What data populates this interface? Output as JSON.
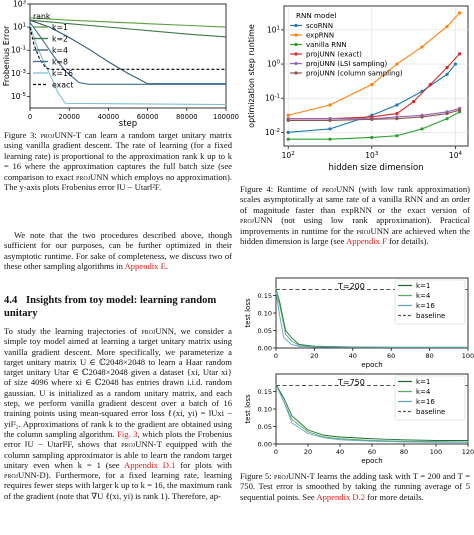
{
  "fig3": {
    "chart_data": {
      "type": "line",
      "ylabel": "Frobenius Error",
      "xlabel": "step",
      "x_ticks": [
        "0",
        "20000",
        "40000",
        "60000",
        "80000",
        "100000"
      ],
      "y_ticks": [
        "10^3",
        "10^1",
        "10^-1",
        "10^-3",
        "10^-5"
      ],
      "yscale": "log",
      "xlim": [
        0,
        100000
      ],
      "ylim_log10": [
        -6,
        3
      ],
      "legend_title": "rank",
      "legend_position": "left",
      "series": [
        {
          "name": "k=1",
          "color": "#5a9e3f",
          "x": [
            0,
            20000,
            40000,
            60000,
            80000,
            100000
          ],
          "y_log10": [
            1.8,
            1.6,
            1.45,
            1.3,
            1.15,
            1.0
          ]
        },
        {
          "name": "k=2",
          "color": "#3d7a42",
          "x": [
            0,
            20000,
            40000,
            60000,
            80000,
            100000
          ],
          "y_log10": [
            1.6,
            1.3,
            1.0,
            0.7,
            0.4,
            0.15
          ]
        },
        {
          "name": "k=4",
          "color": "#2e5a73",
          "x": [
            0,
            10000,
            20000,
            30000,
            40000,
            50000,
            60000,
            100000
          ],
          "y_log10": [
            1.6,
            1.0,
            0.1,
            -0.9,
            -2.0,
            -3.0,
            -3.9,
            -3.9
          ]
        },
        {
          "name": "k=8",
          "color": "#3a6f9c",
          "x": [
            0,
            6000,
            12000,
            18000,
            25000,
            30000,
            100000
          ],
          "y_log10": [
            1.4,
            0.0,
            -1.5,
            -2.8,
            -3.8,
            -3.95,
            -3.95
          ]
        },
        {
          "name": "k=16",
          "color": "#7fbfd6",
          "x": [
            0,
            3000,
            7000,
            11000,
            14000,
            18000,
            100000
          ],
          "y_log10": [
            1.2,
            -0.4,
            -2.0,
            -3.4,
            -4.6,
            -5.6,
            -5.7
          ]
        },
        {
          "name": "exact",
          "color": "#000000",
          "dashed": true,
          "x": [
            0,
            2000,
            5000,
            8000,
            10000,
            100000
          ],
          "y_log10": [
            1.0,
            -0.5,
            -1.8,
            -2.5,
            -2.65,
            -2.65
          ]
        }
      ]
    },
    "caption": {
      "label": "Figure 3: ",
      "sc": "projUNN",
      "text": "-T can learn a random target unitary matrix using vanilla gradient descent. The rate of learning (for a fixed learning rate) is proportional to the approximation rank k up to k = 16 where the approximation captures the full batch size (see comparison to exact ",
      "sc2": "projUNN",
      "text2": " which employs no approximation). The y-axis plots Frobenius error ‖U − Utar‖²F."
    }
  },
  "fig4": {
    "chart_data": {
      "type": "line",
      "ylabel": "optimization step runtime",
      "xlabel": "hidden size dimension",
      "x_ticks": [
        "10^2",
        "10^3",
        "10^4"
      ],
      "y_ticks": [
        "10^1",
        "10^0",
        "10^-1",
        "10^-2"
      ],
      "xscale": "log",
      "yscale": "log",
      "xlim_log10": [
        1.95,
        4.15
      ],
      "ylim_log10": [
        -2.4,
        1.7
      ],
      "legend_title": "RNN model",
      "legend_position": "top-left",
      "series": [
        {
          "name": "scoRNN",
          "color": "#1f77b4",
          "x_log10": [
            2.0,
            2.5,
            3.0,
            3.3,
            3.6,
            3.9,
            4.0
          ],
          "y_log10": [
            -2.0,
            -1.9,
            -1.5,
            -1.2,
            -0.8,
            -0.3,
            0.0
          ]
        },
        {
          "name": "expRNN",
          "color": "#ff7f0e",
          "x_log10": [
            2.0,
            2.5,
            3.0,
            3.3,
            3.6,
            3.9,
            4.05
          ],
          "y_log10": [
            -1.5,
            -1.2,
            -0.6,
            0.0,
            0.5,
            1.1,
            1.5
          ]
        },
        {
          "name": "vanilla RNN",
          "color": "#2ca02c",
          "x_log10": [
            2.0,
            2.5,
            3.0,
            3.3,
            3.6,
            3.9,
            4.05
          ],
          "y_log10": [
            -2.2,
            -2.2,
            -2.15,
            -2.1,
            -1.9,
            -1.6,
            -1.4
          ]
        },
        {
          "name": "projUNN (exact)",
          "color": "#d62728",
          "x_log10": [
            2.0,
            2.5,
            3.0,
            3.3,
            3.5,
            3.7,
            3.9,
            4.05
          ],
          "y_log10": [
            -1.6,
            -1.6,
            -1.55,
            -1.45,
            -1.1,
            -0.6,
            -0.1,
            0.3
          ]
        },
        {
          "name": "projUNN (LSI sampling)",
          "color": "#9467bd",
          "x_log10": [
            2.0,
            2.5,
            3.0,
            3.3,
            3.6,
            3.9,
            4.05
          ],
          "y_log10": [
            -1.6,
            -1.6,
            -1.6,
            -1.55,
            -1.5,
            -1.4,
            -1.3
          ]
        },
        {
          "name": "projUNN (column sampling)",
          "color": "#8c564b",
          "x_log10": [
            2.0,
            2.5,
            3.0,
            3.3,
            3.6,
            3.9,
            4.05
          ],
          "y_log10": [
            -1.65,
            -1.65,
            -1.62,
            -1.6,
            -1.55,
            -1.45,
            -1.35
          ]
        }
      ]
    },
    "caption": {
      "label": "Figure 4: Runtime of ",
      "sc": "projUNN",
      "text": " (with low rank approximation) scales asymptotically at same rate of a vanilla RNN and an order of magnitude faster than expRNN or the exact version of ",
      "sc2": "projUNN",
      "text2": " (not using low rank approximation). Practical improvements in runtime for the ",
      "sc3": "projUNN",
      "text3": " are achieved when the hidden dimension is large (see ",
      "link": "Appendix F",
      "text4": " for details)."
    }
  },
  "fig5": {
    "chart_data": [
      {
        "type": "line",
        "title": "T=200",
        "ylabel": "test loss",
        "xlabel": "epoch",
        "x_ticks": [
          "0",
          "20",
          "40",
          "60",
          "80",
          "100"
        ],
        "y_ticks": [
          "0.15",
          "0.10",
          "0.05",
          "0.00"
        ],
        "xlim": [
          0,
          100
        ],
        "ylim": [
          0,
          0.2
        ],
        "legend_position": "top-right",
        "series": [
          {
            "name": "k=1",
            "color": "#1f6b2e",
            "x": [
              0,
              2,
              5,
              8,
              12,
              20,
              40,
              60,
              100
            ],
            "y": [
              0.17,
              0.13,
              0.05,
              0.03,
              0.01,
              0.005,
              0.003,
              0.002,
              0.002
            ]
          },
          {
            "name": "k=4",
            "color": "#5aae61",
            "x": [
              0,
              2,
              5,
              8,
              12,
              20,
              40,
              60,
              100
            ],
            "y": [
              0.17,
              0.12,
              0.04,
              0.02,
              0.008,
              0.004,
              0.003,
              0.002,
              0.002
            ]
          },
          {
            "name": "k=16",
            "color": "#5fa2c8",
            "x": [
              0,
              2,
              4,
              8,
              12,
              20,
              40,
              60,
              100
            ],
            "y": [
              0.16,
              0.09,
              0.03,
              0.01,
              0.005,
              0.003,
              0.002,
              0.002,
              0.002
            ]
          },
          {
            "name": "baseline",
            "color": "#555555",
            "dashed": true,
            "x": [
              0,
              100
            ],
            "y": [
              0.167,
              0.167
            ]
          }
        ]
      },
      {
        "type": "line",
        "title": "T=750",
        "ylabel": "test loss",
        "xlabel": "epoch",
        "x_ticks": [
          "0",
          "20",
          "40",
          "60",
          "80",
          "100",
          "120"
        ],
        "y_ticks": [
          "0.15",
          "0.10",
          "0.05",
          "0.00"
        ],
        "xlim": [
          0,
          120
        ],
        "ylim": [
          0,
          0.2
        ],
        "legend_position": "top-right",
        "series": [
          {
            "name": "k=1",
            "color": "#1f6b2e",
            "x": [
              0,
              5,
              10,
              20,
              30,
              40,
              60,
              80,
              100,
              120
            ],
            "y": [
              0.17,
              0.13,
              0.08,
              0.04,
              0.025,
              0.02,
              0.015,
              0.012,
              0.01,
              0.01
            ]
          },
          {
            "name": "k=4",
            "color": "#5aae61",
            "x": [
              0,
              5,
              10,
              20,
              30,
              40,
              60,
              80,
              100,
              120
            ],
            "y": [
              0.17,
              0.12,
              0.07,
              0.035,
              0.02,
              0.015,
              0.01,
              0.008,
              0.007,
              0.006
            ]
          },
          {
            "name": "k=16",
            "color": "#5fa2c8",
            "x": [
              0,
              5,
              10,
              20,
              30,
              40,
              60,
              80,
              100,
              120
            ],
            "y": [
              0.17,
              0.12,
              0.06,
              0.03,
              0.018,
              0.012,
              0.008,
              0.006,
              0.005,
              0.005
            ]
          },
          {
            "name": "baseline",
            "color": "#555555",
            "dashed": true,
            "x": [
              0,
              120
            ],
            "y": [
              0.167,
              0.167
            ]
          }
        ]
      }
    ],
    "caption": {
      "label": "Figure 5: ",
      "sc": "projUNN",
      "text": "-T learns the adding task with T = 200 and T = 750. Test error is smoothed by taking the running average of 5 sequential points. See ",
      "link": "Appendix D.2",
      "text2": " for more details."
    }
  },
  "para1": {
    "text": "We note that the two procedures described above, though sufficient for our purposes, can be further optimized in their asymptotic runtime. For sake of completeness, we discuss two of these other sampling algorithms in ",
    "link": "Appendix E",
    "text2": "."
  },
  "section": {
    "number": "4.4",
    "title": "Insights from toy model: learning random unitary"
  },
  "para2": {
    "t1": "To study the learning trajectories of ",
    "sc": "projUNN",
    "t2": ", we consider a simple toy model aimed at learning a target unitary matrix using vanilla gradient descent. More specifically, we parameterize a target unitary matrix U ∈ ℂ2048×2048 to learn a Haar random target unitary Utar ∈ ℂ2048×2048 given a dataset {xi, Utar xi} of size 4096 where xi ∈ ℂ2048 has entries drawn i.i.d. random gaussian. U is initialized as a random unitary matrix, and each step, we perform vanilla gradient descent over a batch of 16 training points using mean-squared error loss ℓ(xi, yi) = ‖Uxi − yi‖²₂. Approximations of rank k to the gradient are obtained using the column sampling algorithm.",
    "link": "Fig. 3",
    "t3": ", which plots the Frobenius error ‖U − Utar‖²F, shows that ",
    "sc2": "projUNN",
    "t4": "-T equipped with the column sampling approximator is able to learn the random target unitary even when k = 1 (see ",
    "link2": "Appendix D.1",
    "t5": " for plots with ",
    "sc3": "projUNN",
    "t6": "-D). Furthermore, for a fixed learning rate, learning requires fewer steps with larger k up to k = 16, the maximum rank of the gradient (note that ∇U ℓ(xi, yi) is rank 1). Therefore, ap-"
  }
}
